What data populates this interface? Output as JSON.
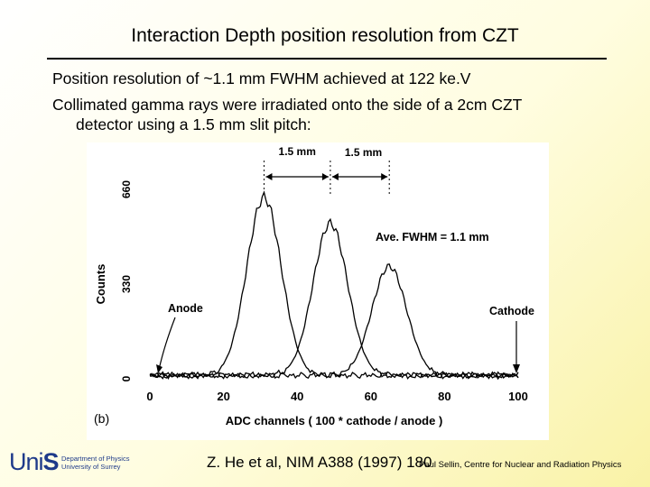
{
  "slide": {
    "title": "Interaction Depth position resolution from CZT",
    "bullet1": "Position resolution of ~1.1 mm FWHM achieved at 122 ke.V",
    "bullet2_line1": "Collimated gamma rays were irradiated onto the side of a 2cm CZT",
    "bullet2_line2": "detector using a 1.5 mm slit pitch:",
    "citation": "Z. He et al, NIM A388 (1997) 180",
    "footer": "Paul Sellin, Centre for Nuclear and Radiation Physics",
    "logo_text_prefix": "Uni",
    "logo_text_s": "S",
    "logo_dept_line1": "Department of Physics",
    "logo_dept_line2": "University of Surrey"
  },
  "chart_data": {
    "type": "line",
    "title": "",
    "panel_label": "(b)",
    "xlabel": "ADC channels ( 100 * cathode / anode )",
    "ylabel": "Counts",
    "xlim": [
      0,
      100
    ],
    "ylim": [
      0,
      660
    ],
    "x_ticks": [
      0,
      20,
      40,
      60,
      80,
      100
    ],
    "x_tick_labels": [
      "0",
      "20",
      "40",
      "60",
      "80",
      "100"
    ],
    "y_ticks": [
      0,
      330,
      660
    ],
    "y_tick_labels": [
      "0",
      "330",
      "660"
    ],
    "annotations": {
      "spacing1": "1.5 mm",
      "spacing2": "1.5 mm",
      "fwhm": "Ave. FWHM = 1.1 mm",
      "anode": "Anode",
      "cathode": "Cathode"
    },
    "baseline_counts": 12,
    "series": [
      {
        "name": "peak 1",
        "center": 31,
        "height": 620,
        "sigma": 4.7
      },
      {
        "name": "peak 2",
        "center": 49,
        "height": 530,
        "sigma": 4.7
      },
      {
        "name": "peak 3",
        "center": 65,
        "height": 380,
        "sigma": 4.7
      }
    ],
    "colors": {
      "line": "#000000",
      "background": "#ffffff"
    }
  }
}
